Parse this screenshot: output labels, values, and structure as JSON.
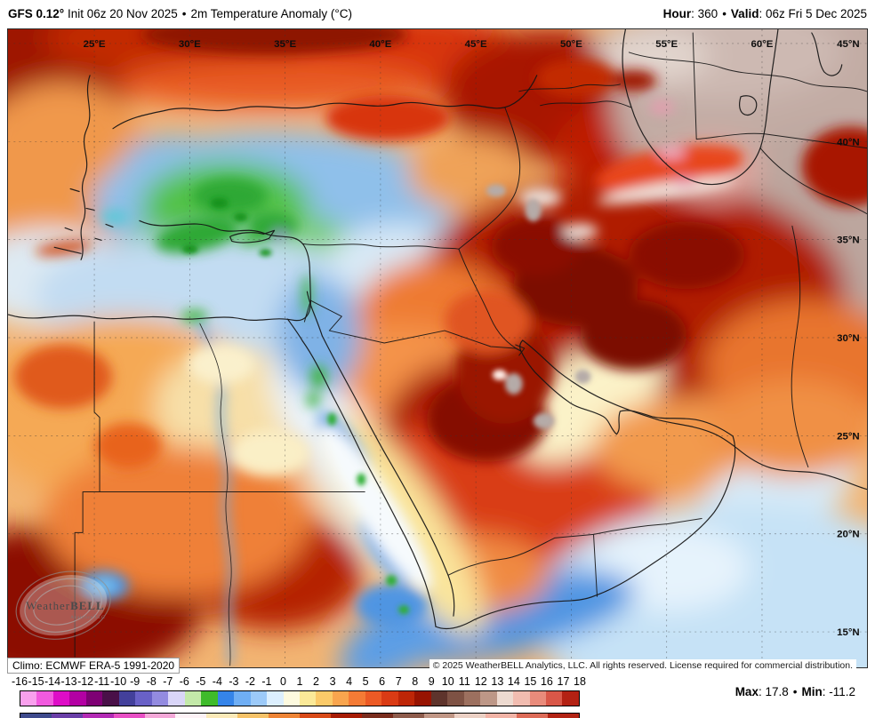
{
  "header": {
    "model": "GFS 0.12°",
    "init": "Init 06z 20 Nov 2025",
    "separator": "•",
    "product": "2m Temperature Anomaly (°C)",
    "hour_label": "Hour",
    "hour_value": ": 360",
    "valid_label": "Valid",
    "valid_value": ": 06z Fri 5 Dec 2025"
  },
  "map": {
    "lon_labels": [
      "25°E",
      "30°E",
      "35°E",
      "40°E",
      "45°E",
      "50°E",
      "55°E",
      "60°E"
    ],
    "lat_labels": [
      "45°N",
      "40°N",
      "35°N",
      "30°N",
      "25°N",
      "20°N",
      "15°N"
    ],
    "climo": "Climo: ECMWF ERA-5 1991-2020",
    "copyright": "© 2025 WeatherBELL Analytics, LLC. All rights reserved. License required for commercial distribution.",
    "watermark_weather": "Weather",
    "watermark_bell": "BELL",
    "watermark_sub": "Analytics LLC"
  },
  "colorbar": {
    "ticks": [
      "-16",
      "-15",
      "-14",
      "-13",
      "-12",
      "-11",
      "-10",
      "-9",
      "-8",
      "-7",
      "-6",
      "-5",
      "-4",
      "-3",
      "-2",
      "-1",
      "0",
      "1",
      "2",
      "3",
      "4",
      "5",
      "6",
      "7",
      "8",
      "9",
      "10",
      "11",
      "12",
      "13",
      "14",
      "15",
      "16",
      "17",
      "18"
    ],
    "cells": [
      {
        "value": -16,
        "color": "#F9A0ED"
      },
      {
        "value": -15,
        "color": "#F25ADF"
      },
      {
        "value": -14,
        "color": "#DE0DC7"
      },
      {
        "value": -13,
        "color": "#B300A3"
      },
      {
        "value": -12,
        "color": "#7E0074"
      },
      {
        "value": -11,
        "color": "#491048"
      },
      {
        "value": -10,
        "color": "#43409B"
      },
      {
        "value": -9,
        "color": "#6961C7"
      },
      {
        "value": -8,
        "color": "#938BE0"
      },
      {
        "value": -7,
        "color": "#D9D5F8"
      },
      {
        "value": -6,
        "color": "#C3E9A9"
      },
      {
        "value": -5,
        "color": "#3FBB2B"
      },
      {
        "value": -4,
        "color": "#3584E9"
      },
      {
        "value": -3,
        "color": "#6FAEF4"
      },
      {
        "value": -2,
        "color": "#9CCAF9"
      },
      {
        "value": -1,
        "color": "#DCEFFE"
      },
      {
        "value": 0,
        "color": "#FDFADF"
      },
      {
        "value": 1,
        "color": "#FBE998"
      },
      {
        "value": 2,
        "color": "#FBCA69"
      },
      {
        "value": 3,
        "color": "#F9A54E"
      },
      {
        "value": 4,
        "color": "#F57B35"
      },
      {
        "value": 5,
        "color": "#EC5A25"
      },
      {
        "value": 6,
        "color": "#DA3B14"
      },
      {
        "value": 7,
        "color": "#BE2607"
      },
      {
        "value": 8,
        "color": "#971301"
      },
      {
        "value": 9,
        "color": "#5E342C"
      },
      {
        "value": 10,
        "color": "#7E5244"
      },
      {
        "value": 11,
        "color": "#9C705F"
      },
      {
        "value": 12,
        "color": "#BD9787"
      },
      {
        "value": 13,
        "color": "#EDDAD0"
      },
      {
        "value": 14,
        "color": "#F1BCB0"
      },
      {
        "value": 15,
        "color": "#E98B7B"
      },
      {
        "value": 16,
        "color": "#D95748"
      },
      {
        "value": 17,
        "color": "#B32113"
      }
    ]
  },
  "partial_colorbar": {
    "colors": [
      "#3E4A8C",
      "#6A3FA8",
      "#B32BB5",
      "#E84FC4",
      "#F4A8D8",
      "#FDF2F6",
      "#FBE9B8",
      "#F6C268",
      "#EE8436",
      "#D94A18",
      "#A81C06",
      "#7A2D1E",
      "#8E5C4C",
      "#C09685",
      "#EBD0C4",
      "#F2B3A6",
      "#DD6B58",
      "#B32415"
    ]
  },
  "stats": {
    "max_label": "Max",
    "max_value": ": 17.8",
    "separator": "•",
    "min_label": "Min",
    "min_value": ": -11.2"
  }
}
